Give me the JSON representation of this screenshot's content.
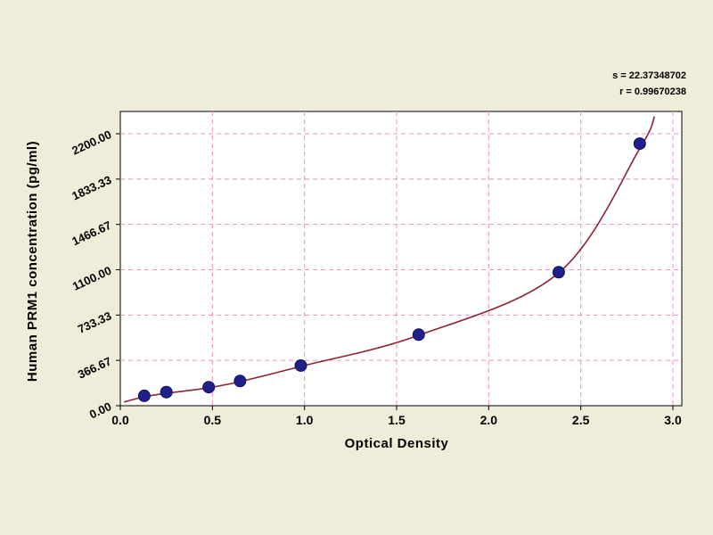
{
  "chart_data": {
    "type": "scatter",
    "title": "",
    "xlabel": "Optical Density",
    "ylabel": "Human PRM1 concentration (pg/ml)",
    "x_ticks": [
      0.0,
      0.5,
      1.0,
      1.5,
      2.0,
      2.5,
      3.0
    ],
    "x_tick_labels": [
      "0.0",
      "0.5",
      "1.0",
      "1.5",
      "2.0",
      "2.5",
      "3.0"
    ],
    "y_ticks": [
      0,
      366.67,
      733.33,
      1100,
      1466.67,
      1833.33,
      2200
    ],
    "y_tick_labels": [
      "0.00",
      "366.67",
      "733.33",
      "1100.00",
      "1466.67",
      "1833.33",
      "2200.00"
    ],
    "xlim": [
      0,
      3.05
    ],
    "ylim": [
      0,
      2380
    ],
    "grid": true,
    "legend": "none",
    "series": [
      {
        "name": "standard-points",
        "type": "scatter",
        "color": "#20208a",
        "x": [
          0.13,
          0.25,
          0.48,
          0.65,
          0.98,
          1.62,
          2.38,
          2.82
        ],
        "y": [
          80,
          110,
          150,
          200,
          325,
          575,
          1080,
          2120
        ]
      },
      {
        "name": "fit-curve",
        "type": "line",
        "color": "#8b2332",
        "x": [
          0.02,
          0.13,
          0.25,
          0.48,
          0.65,
          0.98,
          1.62,
          2.38,
          2.82,
          2.9
        ],
        "y": [
          30,
          72,
          100,
          145,
          195,
          318,
          570,
          1075,
          2080,
          2340
        ]
      }
    ],
    "annotations": [
      "s = 22.37348702",
      "r = 0.99670238"
    ],
    "colors": {
      "background": "#f0ecda",
      "plot_bg": "#ffffff",
      "grid": "#ef8fc0",
      "axis": "#000000",
      "point": "#20208a",
      "point_edge": "#101060",
      "curve": "#8b2332"
    }
  }
}
